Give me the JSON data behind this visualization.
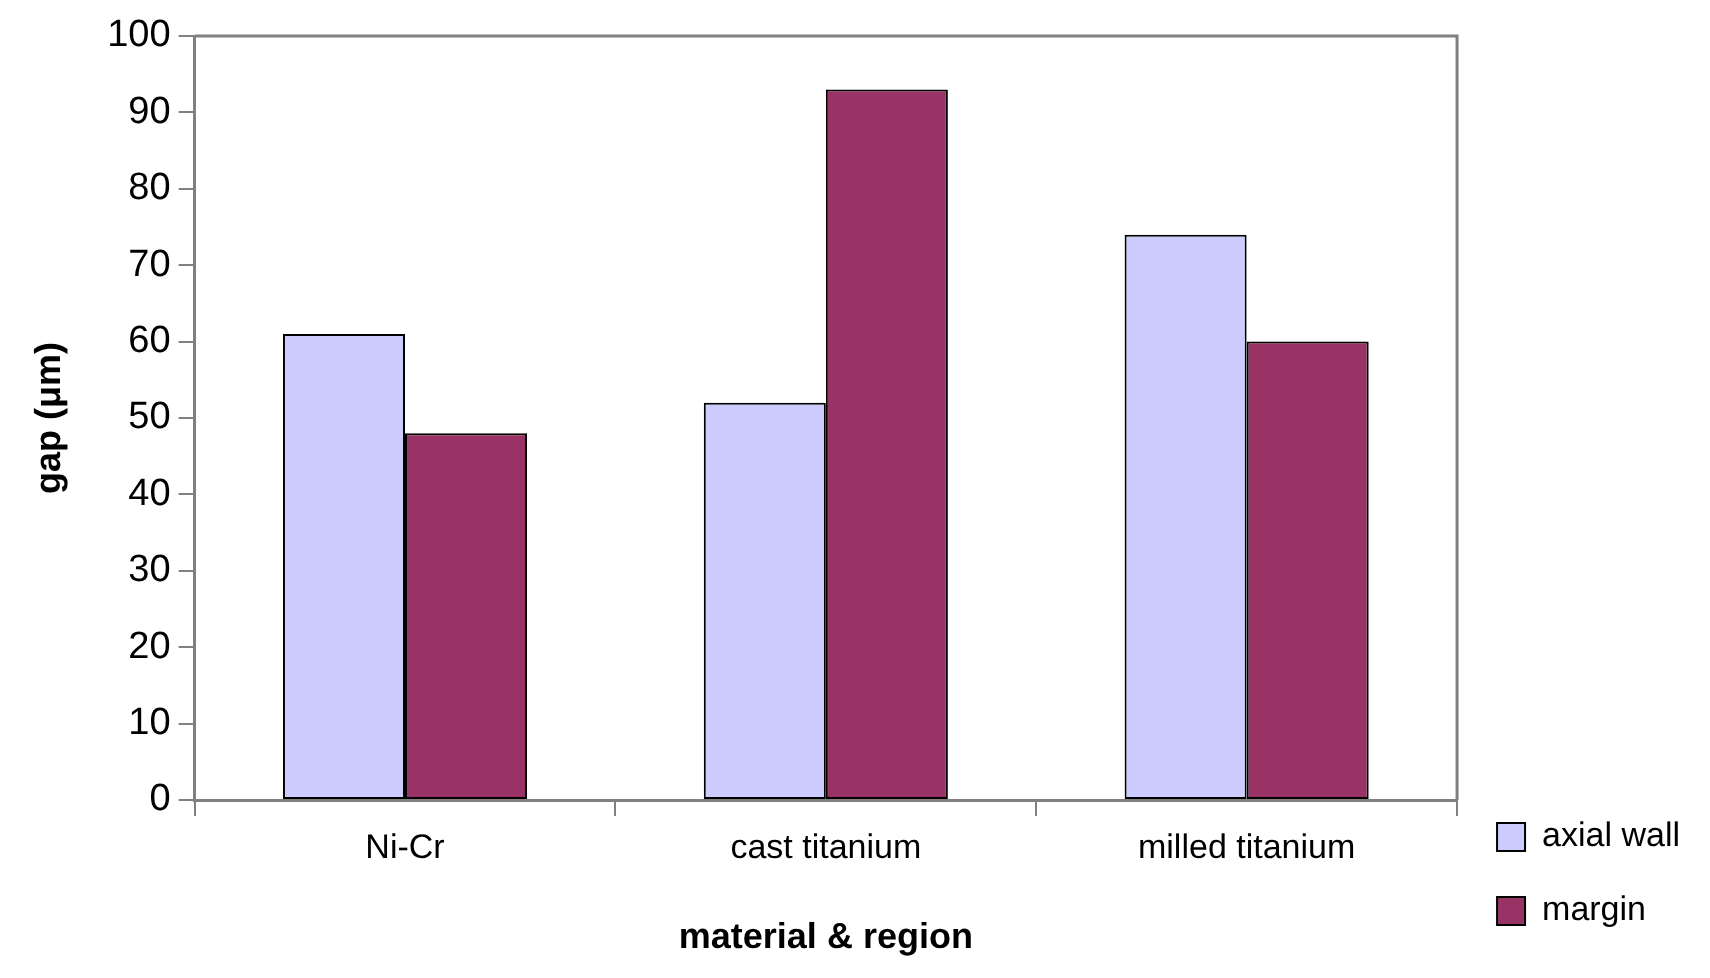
{
  "chart_data": {
    "type": "bar",
    "xlabel": "material & region",
    "ylabel": "gap (μm)",
    "categories": [
      "Ni-Cr",
      "cast titanium",
      "milled titanium"
    ],
    "series": [
      {
        "name": "axial wall",
        "color": "#ccccff",
        "values": [
          61,
          52,
          74
        ]
      },
      {
        "name": "margin",
        "color": "#993366",
        "values": [
          48,
          93,
          60
        ]
      }
    ],
    "ylim": [
      0,
      100
    ],
    "yticks": [
      0,
      10,
      20,
      30,
      40,
      50,
      60,
      70,
      80,
      90,
      100
    ],
    "grid": false,
    "legend": "bottom right"
  }
}
